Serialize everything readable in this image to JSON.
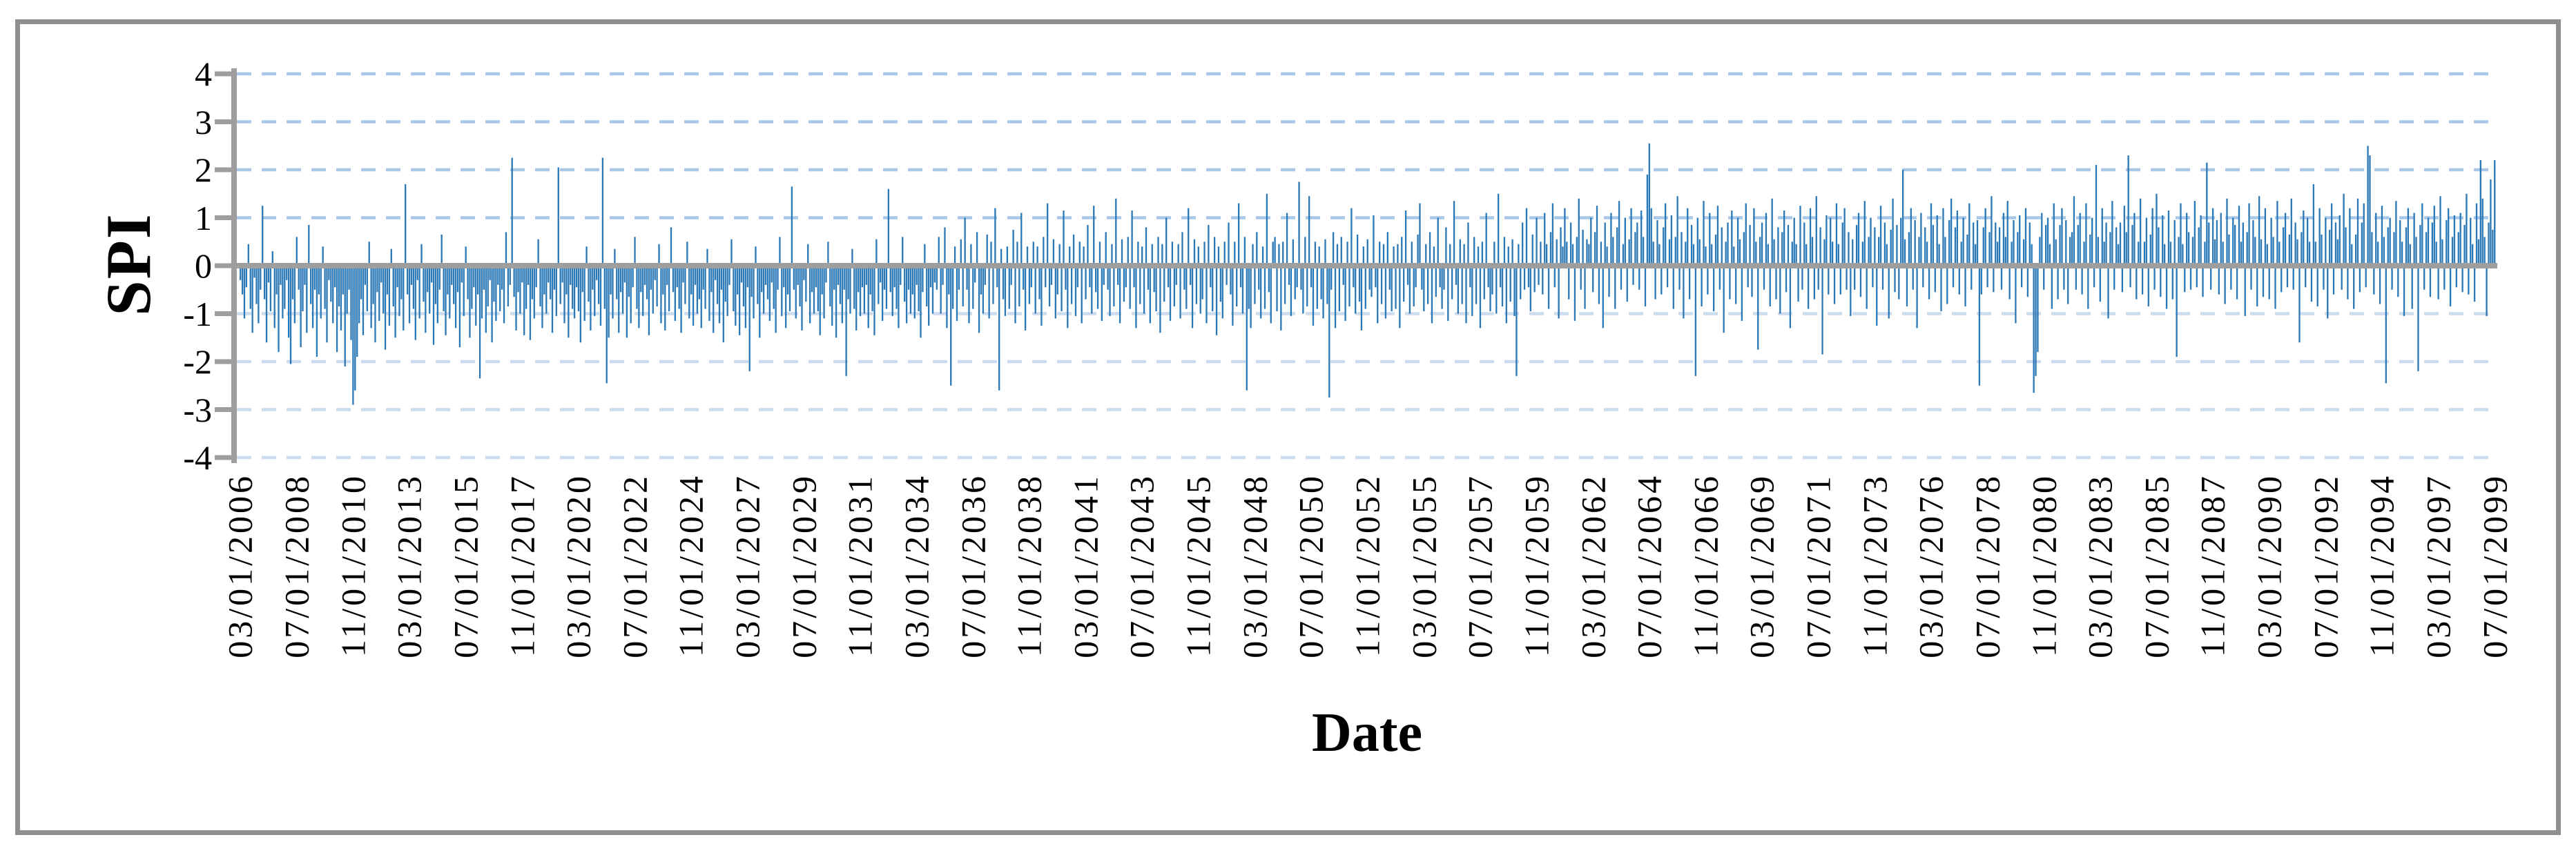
{
  "figure": {
    "xlabel": "Date",
    "ylabel": "SPI"
  },
  "chart_data": {
    "type": "bar",
    "title": "",
    "xlabel": "Date",
    "ylabel": "SPI",
    "ylim": [
      -4,
      4
    ],
    "yticks": [
      4,
      3,
      2,
      1,
      0,
      -1,
      -2,
      -3,
      -4
    ],
    "grid": "horizontal-dashed",
    "legend": "none",
    "bar_color": "#2B78B6",
    "grid_color_above_zero": "#A9C7E8",
    "grid_color_below_zero": "#CBDCF1",
    "axis_color": "#9E9E9E",
    "border_color": "#8F8F8F",
    "x_start": "03/01/2006",
    "x_end": "07/01/2099",
    "x_frequency": "monthly",
    "xtick_every_n_points": 28,
    "xtick_labels": [
      "03/01/2006",
      "07/01/2008",
      "11/01/2010",
      "03/01/2013",
      "07/01/2015",
      "11/01/2017",
      "03/01/2020",
      "07/01/2022",
      "11/01/2024",
      "03/01/2027",
      "07/01/2029",
      "11/01/2031",
      "03/01/2034",
      "07/01/2036",
      "11/01/2038",
      "03/01/2041",
      "07/01/2043",
      "11/01/2045",
      "03/01/2048",
      "07/01/2050",
      "11/01/2052",
      "03/01/2055",
      "07/01/2057",
      "11/01/2059",
      "03/01/2062",
      "07/01/2064",
      "11/01/2066",
      "03/01/2069",
      "07/01/2071",
      "11/01/2073",
      "03/01/2076",
      "07/01/2078",
      "11/01/2080",
      "03/01/2083",
      "07/01/2085",
      "11/01/2087",
      "03/01/2090",
      "07/01/2092",
      "11/01/2094",
      "03/01/2097",
      "07/01/2099"
    ],
    "values": [
      -0.3,
      -0.6,
      -1.1,
      -0.45,
      0.45,
      -0.9,
      -1.4,
      -0.25,
      -0.8,
      -1.2,
      -0.5,
      1.25,
      -0.7,
      -1.6,
      -0.35,
      -0.95,
      0.3,
      -1.3,
      -0.6,
      -1.8,
      -0.4,
      -1.1,
      -0.9,
      -0.3,
      -1.5,
      -2.05,
      -0.7,
      -1.2,
      0.6,
      -0.5,
      -1.7,
      -0.95,
      -0.4,
      -1.4,
      0.85,
      -0.8,
      -1.3,
      -0.5,
      -1.9,
      -0.6,
      -1.1,
      0.4,
      -0.9,
      -1.6,
      -0.3,
      -0.75,
      -1.2,
      -0.45,
      -1.8,
      -0.85,
      -1.35,
      -0.6,
      -2.1,
      -1.0,
      -0.5,
      -1.55,
      -2.9,
      -2.6,
      -1.9,
      -1.2,
      -0.7,
      -1.45,
      -0.4,
      -0.95,
      0.5,
      -1.3,
      -0.8,
      -1.6,
      -0.55,
      -1.15,
      -0.35,
      -1.0,
      -1.75,
      -0.6,
      -1.25,
      0.35,
      -0.85,
      -1.5,
      -0.45,
      -1.05,
      -0.7,
      -1.35,
      1.7,
      -0.6,
      -1.2,
      -0.4,
      -0.9,
      -1.55,
      -0.3,
      -1.1,
      0.45,
      -0.75,
      -1.4,
      -0.55,
      -1.0,
      -0.35,
      -1.65,
      -0.8,
      -1.2,
      -0.5,
      0.65,
      -0.95,
      -1.45,
      -0.6,
      -1.1,
      -0.4,
      -0.8,
      -1.3,
      -0.55,
      -1.7,
      -0.35,
      -1.05,
      0.4,
      -0.7,
      -1.5,
      -0.9,
      -0.45,
      -1.25,
      -0.6,
      -2.35,
      -1.1,
      -0.5,
      -1.4,
      -0.85,
      -0.3,
      -1.6,
      -0.75,
      -1.15,
      -0.4,
      -0.95,
      -0.5,
      -1.2,
      0.7,
      -0.85,
      -0.4,
      2.25,
      -0.65,
      -1.35,
      -0.55,
      -1.0,
      -0.35,
      -1.45,
      -0.9,
      -0.4,
      -1.55,
      -0.7,
      -1.1,
      -0.45,
      0.55,
      -0.85,
      -1.3,
      -0.6,
      -1.0,
      -0.35,
      -0.7,
      -1.4,
      -0.5,
      -1.05,
      2.05,
      -0.8,
      -0.35,
      -1.2,
      -0.6,
      -1.5,
      -0.4,
      -0.9,
      -1.1,
      -0.45,
      -0.95,
      -1.6,
      -0.55,
      -1.15,
      0.4,
      -0.75,
      -1.35,
      -0.5,
      -1.05,
      -0.3,
      -0.8,
      -1.25,
      2.25,
      -0.9,
      -2.45,
      -1.5,
      -0.6,
      -1.1,
      0.35,
      -0.7,
      -1.4,
      -0.55,
      -1.0,
      -0.35,
      -1.5,
      -0.65,
      -1.2,
      -0.45,
      0.6,
      -0.9,
      -1.3,
      -0.55,
      -1.05,
      -0.4,
      -0.7,
      -1.45,
      -0.5,
      -1.0,
      -0.3,
      -0.85,
      0.45,
      -1.2,
      -0.6,
      -1.35,
      -0.4,
      -0.95,
      0.8,
      -0.55,
      -1.15,
      -0.45,
      -0.9,
      -1.4,
      -0.35,
      -0.8,
      0.5,
      -1.1,
      -0.6,
      -1.25,
      -0.4,
      -1.0,
      -0.7,
      -1.3,
      -0.5,
      -0.9,
      0.35,
      -1.15,
      -0.55,
      -1.4,
      -0.3,
      -0.8,
      -1.2,
      -0.5,
      -1.6,
      -0.75,
      -1.05,
      -0.4,
      0.55,
      -0.95,
      -1.25,
      -0.6,
      -1.45,
      -0.35,
      -0.85,
      -1.3,
      -0.45,
      -2.2,
      -0.65,
      -1.1,
      0.4,
      -0.8,
      -1.5,
      -0.55,
      -1.0,
      -0.4,
      -0.7,
      -1.15,
      -0.35,
      -0.9,
      -1.4,
      -0.5,
      0.6,
      -1.05,
      -0.45,
      -1.3,
      -0.6,
      -0.95,
      1.65,
      -0.5,
      -1.1,
      -0.4,
      -0.85,
      -1.35,
      -0.3,
      -0.75,
      0.45,
      -1.2,
      -0.55,
      -1.0,
      -0.45,
      -0.95,
      -1.45,
      -0.6,
      -1.1,
      -0.35,
      0.5,
      -0.85,
      -1.25,
      -0.5,
      -1.5,
      -0.4,
      -0.8,
      -1.2,
      -0.5,
      -2.3,
      -0.7,
      -1.0,
      0.35,
      -0.9,
      -1.35,
      -0.55,
      -1.05,
      -0.45,
      -1.0,
      -0.4,
      -1.3,
      -0.6,
      -0.95,
      -1.45,
      0.55,
      -0.8,
      -0.35,
      -1.15,
      -0.5,
      -0.9,
      1.6,
      -0.55,
      -1.05,
      -0.45,
      -0.9,
      -1.3,
      -0.4,
      0.6,
      -0.75,
      -1.2,
      -0.5,
      -1.0,
      -0.6,
      -1.1,
      -0.4,
      -0.95,
      -1.5,
      -0.55,
      0.45,
      -0.85,
      -1.25,
      -0.45,
      -1.0,
      -0.35,
      -0.5,
      0.6,
      -1.0,
      -0.4,
      0.8,
      -1.3,
      -0.6,
      -2.5,
      -0.9,
      0.4,
      -1.15,
      -0.5,
      0.55,
      -0.85,
      1.0,
      -0.5,
      -1.2,
      0.45,
      -0.9,
      -0.35,
      0.7,
      -1.4,
      -0.6,
      -1.0,
      -0.4,
      0.65,
      -1.1,
      0.5,
      -0.8,
      1.2,
      -0.45,
      -2.6,
      0.35,
      -0.7,
      -1.05,
      0.4,
      -0.9,
      -0.4,
      0.75,
      -1.2,
      0.5,
      -0.85,
      1.1,
      -0.5,
      -1.35,
      0.4,
      -0.8,
      -0.45,
      0.5,
      -1.0,
      0.4,
      -0.7,
      -1.25,
      0.6,
      -0.45,
      1.3,
      -0.85,
      -0.4,
      0.55,
      -1.1,
      -0.6,
      0.45,
      -0.95,
      1.15,
      -0.5,
      -1.3,
      0.4,
      -0.8,
      0.65,
      -1.05,
      -0.45,
      0.5,
      -1.2,
      0.4,
      -0.7,
      0.85,
      -0.45,
      -1.0,
      1.25,
      -0.55,
      -0.9,
      0.5,
      -1.15,
      -0.4,
      0.7,
      -0.5,
      -1.05,
      0.45,
      -0.85,
      1.4,
      -0.4,
      -1.2,
      0.55,
      -0.75,
      -0.45,
      0.6,
      -0.9,
      1.15,
      -0.45,
      -1.3,
      0.5,
      -0.8,
      0.4,
      -1.0,
      0.8,
      -0.5,
      -1.2,
      0.45,
      -0.55,
      -0.95,
      0.6,
      -1.4,
      0.45,
      -0.75,
      1.0,
      -0.45,
      -1.15,
      0.5,
      -0.85,
      -0.4,
      0.45,
      -1.1,
      0.7,
      -0.5,
      -0.9,
      1.2,
      -0.4,
      -1.3,
      0.55,
      -0.8,
      0.4,
      -1.0,
      -0.7,
      0.5,
      -1.2,
      0.85,
      -0.45,
      -0.95,
      0.6,
      -1.45,
      0.4,
      -0.75,
      -1.1,
      0.5,
      -0.4,
      0.9,
      -0.6,
      -1.25,
      0.5,
      -0.85,
      1.3,
      -0.45,
      -1.0,
      0.6,
      -2.6,
      -0.9,
      -1.3,
      0.45,
      -0.8,
      0.7,
      -0.5,
      -1.1,
      0.4,
      -0.9,
      1.5,
      -0.55,
      -1.2,
      0.5,
      0.6,
      -0.95,
      0.45,
      -1.35,
      0.5,
      -0.8,
      1.1,
      -0.4,
      -1.05,
      0.55,
      -0.7,
      -0.45,
      1.75,
      -0.5,
      -1.0,
      0.6,
      -0.85,
      1.45,
      -0.45,
      -1.25,
      0.5,
      -0.9,
      0.4,
      -0.7,
      -1.1,
      0.55,
      -0.8,
      -2.75,
      -0.5,
      0.7,
      -1.3,
      0.45,
      -0.95,
      0.6,
      -0.4,
      -1.15,
      0.5,
      -0.85,
      1.2,
      -0.45,
      -1.0,
      0.65,
      -0.75,
      -1.35,
      0.4,
      -0.9,
      0.55,
      -0.5,
      -0.65,
      1.05,
      -0.45,
      -1.2,
      0.5,
      -0.8,
      0.45,
      -1.1,
      0.7,
      -0.5,
      -0.95,
      0.4,
      -0.9,
      0.45,
      -1.3,
      0.6,
      -0.75,
      1.15,
      -0.4,
      -1.0,
      0.5,
      -0.85,
      -0.45,
      0.65,
      1.3,
      -0.5,
      -0.95,
      0.45,
      -0.8,
      0.7,
      -1.2,
      0.4,
      -0.65,
      1.0,
      -0.45,
      -0.9,
      -0.5,
      0.8,
      -1.15,
      0.45,
      -0.7,
      1.35,
      -0.4,
      -1.0,
      0.55,
      -0.8,
      0.45,
      -1.2,
      0.9,
      -0.45,
      -1.05,
      0.6,
      -0.8,
      0.4,
      -1.3,
      0.5,
      -0.7,
      1.1,
      -0.45,
      -0.95,
      -0.6,
      0.5,
      -1.0,
      1.5,
      -0.45,
      -0.85,
      0.6,
      -1.2,
      0.4,
      -0.75,
      0.55,
      -1.05,
      -2.3,
      0.45,
      -0.7,
      0.9,
      -0.5,
      1.2,
      -0.45,
      -0.95,
      0.65,
      -0.55,
      1.0,
      -0.4,
      0.5,
      -0.6,
      1.1,
      0.45,
      -0.9,
      0.7,
      1.3,
      -0.45,
      0.55,
      -1.1,
      0.8,
      0.4,
      1.2,
      0.5,
      -0.7,
      0.9,
      0.45,
      -1.15,
      0.6,
      1.4,
      -0.5,
      0.75,
      -0.9,
      0.55,
      0.45,
      1.0,
      -0.55,
      0.7,
      1.25,
      -0.8,
      0.5,
      -1.3,
      0.9,
      0.4,
      -0.65,
      1.1,
      0.6,
      -0.9,
      0.8,
      1.35,
      -0.5,
      0.45,
      1.0,
      -0.75,
      0.55,
      1.2,
      -0.4,
      0.7,
      0.9,
      -0.5,
      1.15,
      0.6,
      -0.85,
      1.9,
      2.55,
      1.2,
      0.5,
      -0.7,
      0.95,
      0.45,
      -0.6,
      0.8,
      1.3,
      -0.45,
      0.55,
      1.05,
      -0.9,
      0.6,
      1.45,
      -0.5,
      0.7,
      -1.1,
      0.5,
      1.2,
      -0.7,
      0.85,
      0.45,
      -2.3,
      1.0,
      0.55,
      -0.85,
      1.35,
      0.4,
      -0.6,
      1.1,
      0.45,
      -0.95,
      0.65,
      1.25,
      -0.5,
      0.8,
      -1.4,
      0.5,
      0.9,
      -0.7,
      1.15,
      0.4,
      -0.8,
      1.0,
      0.55,
      -1.15,
      0.7,
      1.3,
      -0.45,
      0.85,
      -0.65,
      1.2,
      0.5,
      -1.75,
      0.6,
      0.9,
      -0.5,
      1.1,
      0.45,
      -0.85,
      1.4,
      0.55,
      -0.7,
      0.8,
      -1.0,
      0.7,
      1.15,
      -0.55,
      0.85,
      -1.3,
      0.5,
      1.0,
      0.45,
      -0.75,
      1.25,
      -0.5,
      0.9,
      0.45,
      -0.9,
      1.2,
      0.6,
      -0.7,
      1.45,
      -0.5,
      0.8,
      -1.85,
      0.55,
      1.05,
      -0.6,
      1.0,
      0.5,
      -0.8,
      1.3,
      0.45,
      -0.6,
      0.9,
      1.2,
      -0.5,
      0.7,
      -1.05,
      0.55,
      -0.5,
      0.85,
      1.1,
      -0.65,
      0.5,
      1.35,
      -0.9,
      0.6,
      1.0,
      -0.45,
      0.8,
      -1.25,
      0.6,
      1.25,
      -0.5,
      0.9,
      0.45,
      -1.1,
      0.75,
      1.4,
      -0.55,
      0.85,
      -0.7,
      1.0,
      2.0,
      0.55,
      -0.85,
      0.7,
      1.2,
      -0.5,
      0.95,
      -1.3,
      0.6,
      1.1,
      -0.45,
      0.8,
      0.5,
      -0.7,
      1.3,
      0.85,
      -0.55,
      1.05,
      0.45,
      -0.95,
      1.2,
      0.6,
      -0.8,
      0.95,
      1.4,
      -0.45,
      0.8,
      1.15,
      -0.6,
      0.5,
      1.0,
      -0.85,
      0.65,
      1.3,
      -0.5,
      0.9,
      0.45,
      0.95,
      -2.5,
      -0.6,
      0.8,
      1.2,
      -0.45,
      0.7,
      1.45,
      -0.55,
      0.9,
      0.5,
      0.8,
      -0.5,
      1.1,
      0.6,
      1.35,
      -0.7,
      0.5,
      0.95,
      -1.2,
      0.7,
      1.05,
      -0.45,
      0.55,
      1.2,
      -0.65,
      0.9,
      0.45,
      -2.65,
      -2.3,
      -1.8,
      0.6,
      1.1,
      -0.5,
      0.85,
      1.0,
      0.45,
      -0.9,
      1.3,
      0.55,
      -0.7,
      0.85,
      1.2,
      -0.5,
      0.95,
      -0.8,
      0.6,
      0.7,
      1.45,
      -0.5,
      0.85,
      1.1,
      -0.6,
      0.5,
      1.3,
      -0.9,
      0.65,
      1.0,
      -0.45,
      2.1,
      0.6,
      -0.75,
      1.2,
      0.5,
      0.9,
      -1.1,
      0.7,
      1.35,
      -0.5,
      0.8,
      0.45,
      0.9,
      -0.55,
      1.25,
      0.7,
      2.3,
      -0.45,
      0.85,
      1.1,
      -0.7,
      0.5,
      1.4,
      -0.6,
      0.5,
      1.0,
      -0.85,
      0.65,
      1.2,
      -0.5,
      1.5,
      0.8,
      -0.65,
      1.05,
      0.45,
      -0.9,
      1.15,
      0.5,
      -0.7,
      0.95,
      -1.9,
      0.6,
      1.3,
      0.45,
      -0.55,
      1.1,
      0.7,
      -0.5,
      0.6,
      1.35,
      -0.45,
      0.8,
      1.05,
      -0.65,
      0.5,
      2.15,
      0.9,
      -0.5,
      1.2,
      0.55,
      0.95,
      -0.6,
      1.1,
      0.5,
      -0.8,
      1.4,
      0.65,
      -0.5,
      1.0,
      0.85,
      -0.7,
      1.25,
      0.5,
      0.9,
      -1.05,
      0.7,
      1.3,
      -0.5,
      0.95,
      0.6,
      -0.85,
      1.45,
      0.55,
      -0.65,
      1.2,
      0.45,
      -0.7,
      1.0,
      0.6,
      -0.9,
      1.35,
      0.5,
      -0.55,
      0.8,
      1.1,
      -0.45,
      0.65,
      1.4,
      -0.5,
      0.9,
      0.55,
      -1.6,
      0.7,
      1.15,
      -0.45,
      1.0,
      0.5,
      -0.75,
      1.7,
      0.5,
      -0.85,
      1.2,
      0.65,
      -0.5,
      1.0,
      -1.1,
      0.75,
      1.3,
      -0.6,
      0.9,
      0.55,
      1.05,
      -0.5,
      1.5,
      0.8,
      -0.7,
      1.2,
      0.45,
      -0.9,
      0.65,
      1.4,
      -0.55,
      0.9,
      1.3,
      -0.45,
      2.5,
      2.3,
      0.7,
      -0.6,
      1.1,
      0.5,
      -0.8,
      1.25,
      0.6,
      -2.45,
      0.8,
      1.0,
      -0.5,
      0.7,
      1.35,
      -0.65,
      0.95,
      0.5,
      -1.05,
      0.8,
      1.2,
      0.45,
      -0.9,
      1.1,
      0.6,
      -2.2,
      0.85,
      1.3,
      -0.5,
      0.7,
      1.0,
      -0.65,
      0.9,
      1.25,
      0.5,
      -0.7,
      1.45,
      0.55,
      -0.5,
      0.95,
      1.2,
      -0.85,
      0.6,
      1.05,
      -0.45,
      0.7,
      1.1,
      -0.55,
      0.85,
      1.5,
      -0.6,
      1.0,
      0.45,
      -0.75,
      1.3,
      0.55,
      2.2,
      1.4,
      0.6,
      -1.05,
      0.9,
      1.8,
      0.75,
      2.2
    ]
  }
}
